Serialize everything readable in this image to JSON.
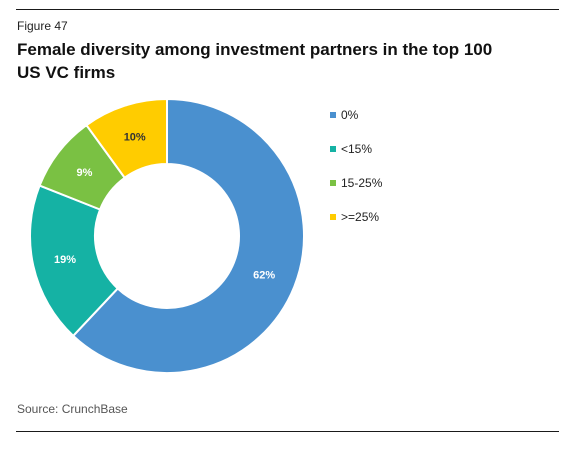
{
  "figure_label": "Figure 47",
  "title": "Female diversity among investment partners in the top 100 US VC firms",
  "source": "Source: CrunchBase",
  "chart_data": {
    "type": "pie",
    "variant": "donut",
    "title": "Female diversity among investment partners in the top 100 US VC firms",
    "legend_position": "right",
    "categories": [
      "0%",
      "<15%",
      "15-25%",
      ">=25%"
    ],
    "values": [
      62,
      19,
      9,
      10
    ],
    "data_labels": [
      "62%",
      "19%",
      "9%",
      "10%"
    ],
    "colors": [
      "#4a90cf",
      "#15b2a4",
      "#7ac143",
      "#ffcc00"
    ],
    "label_colors": [
      "#ffffff",
      "#ffffff",
      "#ffffff",
      "#333333"
    ]
  }
}
